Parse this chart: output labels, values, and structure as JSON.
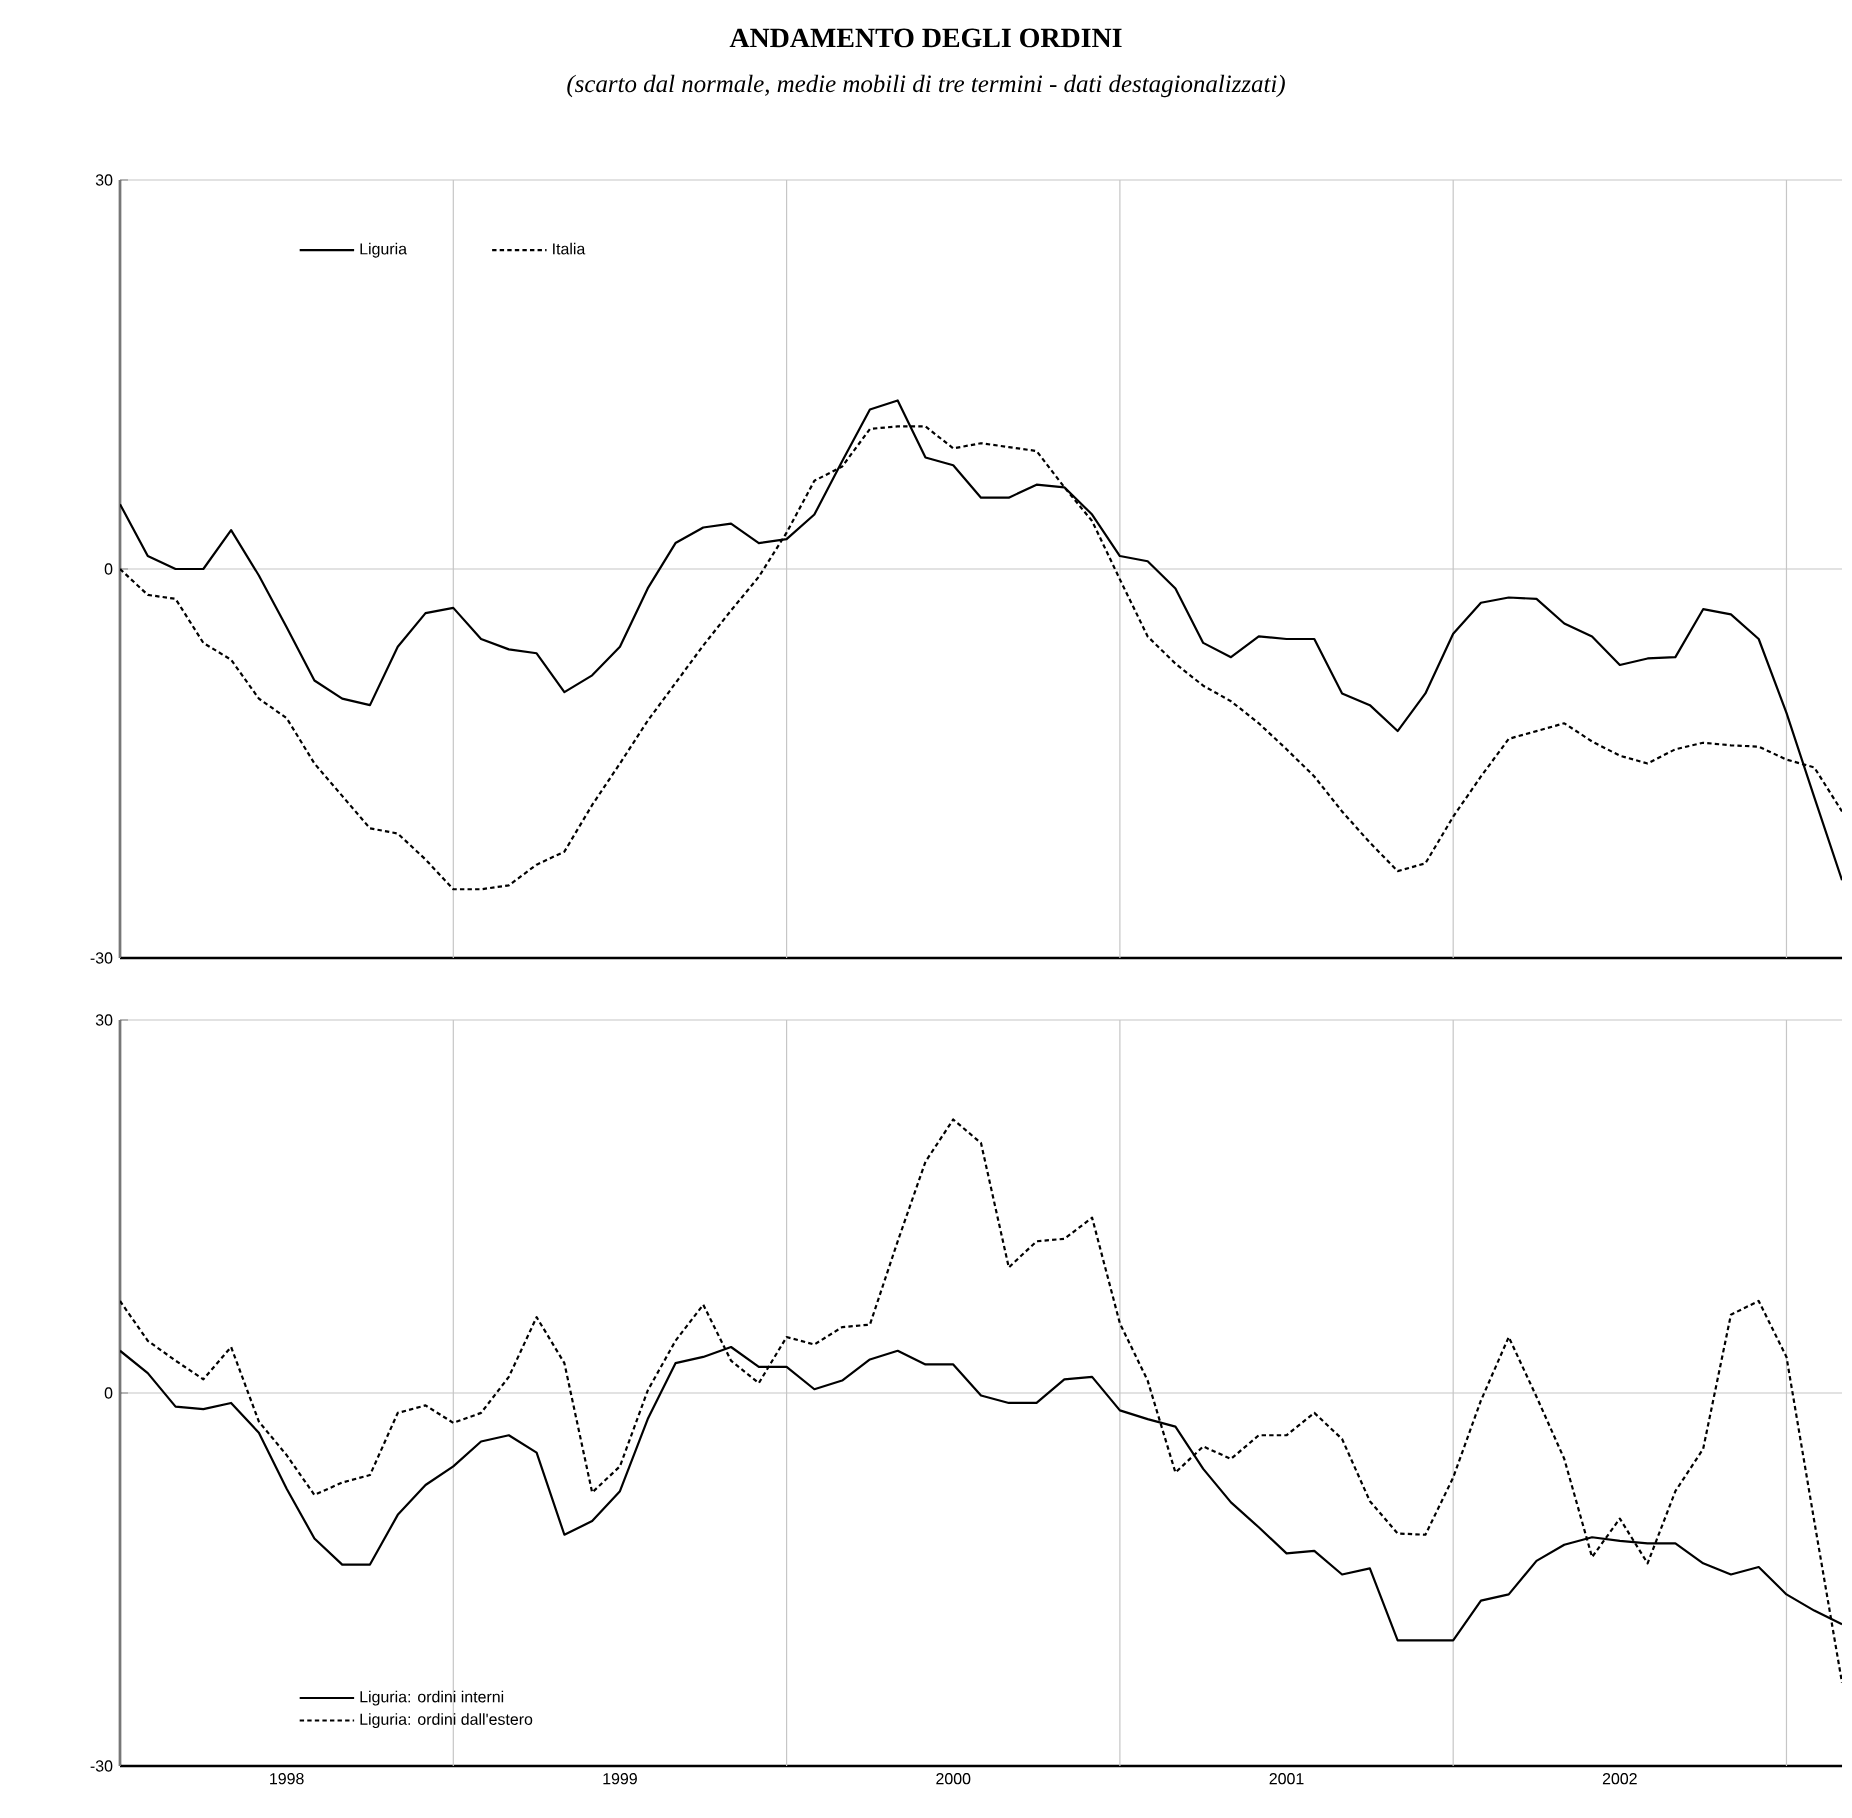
{
  "chart_data": [
    {
      "type": "line",
      "title": "ANDAMENTO DEGLI ORDINI",
      "subtitle": "(scarto dal normale, medie mobili di tre termini - dati destagionalizzati)",
      "x": [
        "1998-01",
        "1998-02",
        "1998-03",
        "1998-04",
        "1998-05",
        "1998-06",
        "1998-07",
        "1998-08",
        "1998-09",
        "1998-10",
        "1998-11",
        "1998-12",
        "1999-01",
        "1999-02",
        "1999-03",
        "1999-04",
        "1999-05",
        "1999-06",
        "1999-07",
        "1999-08",
        "1999-09",
        "1999-10",
        "1999-11",
        "1999-12",
        "2000-01",
        "2000-02",
        "2000-03",
        "2000-04",
        "2000-05",
        "2000-06",
        "2000-07",
        "2000-08",
        "2000-09",
        "2000-10",
        "2000-11",
        "2000-12",
        "2001-01",
        "2001-02",
        "2001-03",
        "2001-04",
        "2001-05",
        "2001-06",
        "2001-07",
        "2001-08",
        "2001-09",
        "2001-10",
        "2001-11",
        "2001-12",
        "2002-01",
        "2002-02",
        "2002-03",
        "2002-04",
        "2002-05",
        "2002-06",
        "2002-07",
        "2002-08",
        "2002-09",
        "2002-10",
        "2002-11",
        "2002-12",
        "2003-01",
        "2003-02",
        "2003-03"
      ],
      "series": [
        {
          "name": "Liguria",
          "color": "#000000",
          "line_style": "solid",
          "values": [
            5,
            1,
            0,
            0,
            3,
            -0.5,
            -4.5,
            -8.6,
            -10,
            -10.5,
            -6,
            -3.4,
            -3,
            -5.4,
            -6.2,
            -6.5,
            -9.5,
            -8.2,
            -6,
            -1.5,
            2,
            3.2,
            3.5,
            2,
            2.3,
            4.2,
            8.3,
            12.3,
            13,
            8.6,
            8,
            5.5,
            5.5,
            6.5,
            6.3,
            4.2,
            1,
            0.6,
            -1.5,
            -5.7,
            -6.8,
            -5.2,
            -5.4,
            -5.4,
            -9.6,
            -10.5,
            -12.5,
            -9.6,
            -5,
            -2.6,
            -2.2,
            -2.3,
            -4.2,
            -5.2,
            -7.4,
            -6.9,
            -6.8,
            -3.1,
            -3.5,
            -5.4,
            -11.1,
            -17.6,
            -24
          ]
        },
        {
          "name": "Italia",
          "color": "#000000",
          "line_style": "dashed",
          "values": [
            0,
            -2,
            -2.3,
            -5.7,
            -7,
            -10,
            -11.5,
            -15,
            -17.5,
            -20,
            -20.4,
            -22.4,
            -24.7,
            -24.7,
            -24.4,
            -22.8,
            -21.8,
            -18.2,
            -15,
            -11.7,
            -8.8,
            -5.9,
            -3.2,
            -0.6,
            2.8,
            6.8,
            7.9,
            10.8,
            11,
            11,
            9.3,
            9.7,
            9.4,
            9.1,
            6.3,
            3.7,
            -0.8,
            -5.2,
            -7.3,
            -9,
            -10.2,
            -11.9,
            -13.9,
            -16,
            -18.7,
            -21.1,
            -23.3,
            -22.7,
            -19.1,
            -16,
            -13.1,
            -12.5,
            -11.9,
            -13.3,
            -14.4,
            -15,
            -13.9,
            -13.4,
            -13.6,
            -13.7,
            -14.7,
            -15.3,
            -18.7
          ]
        }
      ],
      "xlim": [
        "1998-01",
        "2003-03"
      ],
      "xticks": [
        {
          "value": "1998-01",
          "label": null
        },
        {
          "value": "1999-01",
          "label": null
        },
        {
          "value": "2000-01",
          "label": null
        },
        {
          "value": "2001-01",
          "label": null
        },
        {
          "value": "2002-01",
          "label": null
        },
        {
          "value": "2003-01",
          "label": null
        }
      ],
      "ylim": [
        -30,
        30
      ],
      "yticks": [
        -30,
        0,
        30
      ],
      "grid": true,
      "legend": "top left",
      "tick_labels": "y"
    },
    {
      "type": "line",
      "x": [
        "1998-01",
        "1998-02",
        "1998-03",
        "1998-04",
        "1998-05",
        "1998-06",
        "1998-07",
        "1998-08",
        "1998-09",
        "1998-10",
        "1998-11",
        "1998-12",
        "1999-01",
        "1999-02",
        "1999-03",
        "1999-04",
        "1999-05",
        "1999-06",
        "1999-07",
        "1999-08",
        "1999-09",
        "1999-10",
        "1999-11",
        "1999-12",
        "2000-01",
        "2000-02",
        "2000-03",
        "2000-04",
        "2000-05",
        "2000-06",
        "2000-07",
        "2000-08",
        "2000-09",
        "2000-10",
        "2000-11",
        "2000-12",
        "2001-01",
        "2001-02",
        "2001-03",
        "2001-04",
        "2001-05",
        "2001-06",
        "2001-07",
        "2001-08",
        "2001-09",
        "2001-10",
        "2001-11",
        "2001-12",
        "2002-01",
        "2002-02",
        "2002-03",
        "2002-04",
        "2002-05",
        "2002-06",
        "2002-07",
        "2002-08",
        "2002-09",
        "2002-10",
        "2002-11",
        "2002-12",
        "2003-01",
        "2003-02",
        "2003-03"
      ],
      "series": [
        {
          "name": "Liguria: ordini interni",
          "color": "#000000",
          "line_style": "solid",
          "values": [
            3.4,
            1.6,
            -1.1,
            -1.3,
            -0.8,
            -3.2,
            -7.7,
            -11.7,
            -13.8,
            -13.8,
            -9.8,
            -7.4,
            -5.9,
            -3.9,
            -3.4,
            -4.8,
            -11.4,
            -10.3,
            -7.9,
            -2.1,
            2.4,
            2.9,
            3.7,
            2.1,
            2.1,
            0.3,
            1,
            2.7,
            3.4,
            2.3,
            2.3,
            -0.2,
            -0.8,
            -0.8,
            1.1,
            1.3,
            -1.4,
            -2.1,
            -2.7,
            -6.1,
            -8.8,
            -10.8,
            -12.9,
            -12.7,
            -14.6,
            -14.1,
            -19.9,
            -19.9,
            -19.9,
            -16.7,
            -16.2,
            -13.5,
            -12.2,
            -11.6,
            -11.9,
            -12.1,
            -12.1,
            -13.7,
            -14.6,
            -14,
            -16.2,
            -17.5,
            -18.6
          ]
        },
        {
          "name": "Liguria: ordini dall'estero",
          "color": "#000000",
          "line_style": "dashed",
          "values": [
            7.4,
            4.2,
            2.6,
            1.1,
            3.7,
            -2.3,
            -5,
            -8.2,
            -7.2,
            -6.6,
            -1.6,
            -1,
            -2.4,
            -1.6,
            1.3,
            6.1,
            2.4,
            -8,
            -5.9,
            0.2,
            4.2,
            7.1,
            2.6,
            0.8,
            4.5,
            3.9,
            5.3,
            5.5,
            12.2,
            18.6,
            22,
            20.1,
            10.1,
            12.2,
            12.4,
            14.1,
            5.6,
            1,
            -6.4,
            -4.3,
            -5.3,
            -3.4,
            -3.4,
            -1.6,
            -3.7,
            -8.7,
            -11.3,
            -11.4,
            -6.8,
            -0.6,
            4.5,
            -0.3,
            -5.3,
            -13.2,
            -10.1,
            -13.7,
            -7.9,
            -4.5,
            6.3,
            7.4,
            2.9,
            -10.3,
            -23.3
          ]
        }
      ],
      "xlim": [
        "1998-01",
        "2003-03"
      ],
      "xticks": [
        {
          "value": "1998-01",
          "label": null
        },
        {
          "value": "1998-07",
          "label": "1998"
        },
        {
          "value": "1999-01",
          "label": null
        },
        {
          "value": "1999-07",
          "label": "1999"
        },
        {
          "value": "2000-01",
          "label": null
        },
        {
          "value": "2000-07",
          "label": "2000"
        },
        {
          "value": "2001-01",
          "label": null
        },
        {
          "value": "2001-07",
          "label": "2001"
        },
        {
          "value": "2002-01",
          "label": null
        },
        {
          "value": "2002-07",
          "label": "2002"
        },
        {
          "value": "2003-01",
          "label": null
        }
      ],
      "ylim": [
        -30,
        30
      ],
      "yticks": [
        -30,
        0,
        30
      ],
      "grid": true,
      "legend": "bottom left"
    }
  ]
}
